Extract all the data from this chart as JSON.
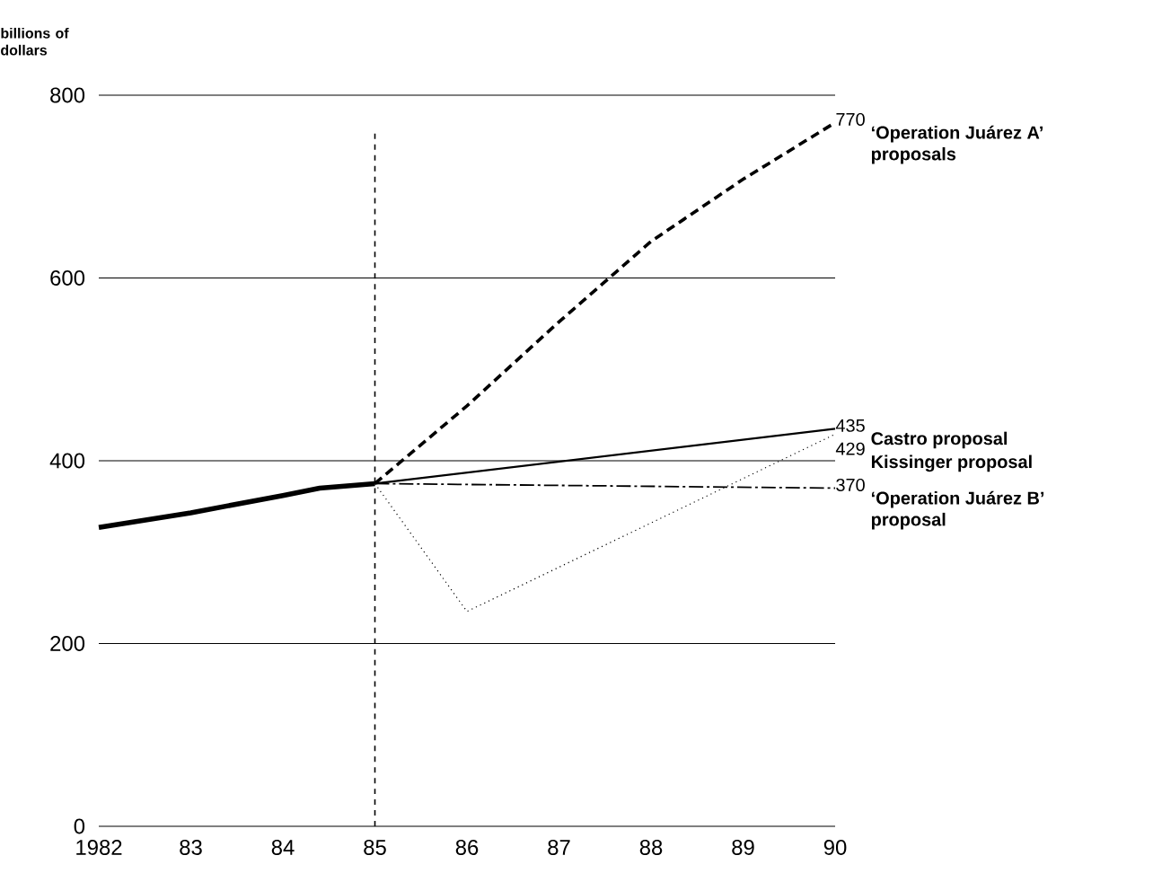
{
  "chart_data": {
    "type": "line",
    "ylabel": "billions of dollars",
    "xlim": [
      1982,
      1990
    ],
    "ylim": [
      0,
      800
    ],
    "xticks": [
      1982,
      {
        "value": 1983,
        "label": "83"
      },
      {
        "value": 1984,
        "label": "84"
      },
      {
        "value": 1985,
        "label": "85"
      },
      {
        "value": 1986,
        "label": "86"
      },
      {
        "value": 1987,
        "label": "87"
      },
      {
        "value": 1988,
        "label": "88"
      },
      {
        "value": 1989,
        "label": "89"
      },
      {
        "value": 1990,
        "label": "90"
      }
    ],
    "yticks": [
      0,
      200,
      400,
      600,
      800
    ],
    "grid": "y",
    "ref_lines": [
      {
        "axis": "x",
        "value": 1985,
        "line_style": "dashed"
      }
    ],
    "series": [
      {
        "color": "#000000",
        "line_style": "solid",
        "x": [
          1982,
          1983,
          1984,
          1984.4,
          1985
        ],
        "values": [
          327,
          343,
          362,
          370,
          375
        ]
      },
      {
        "name": "‘Operation Juárez A’ proposals",
        "color": "#000000",
        "line_style": "dashed",
        "x": [
          1985,
          1986,
          1987,
          1988,
          1989,
          1990
        ],
        "values": [
          375,
          460,
          552,
          640,
          708,
          770
        ],
        "value_labels": [
          null,
          null,
          null,
          null,
          null,
          "770"
        ]
      },
      {
        "name": "Castro proposal",
        "color": "#000000",
        "line_style": "solid",
        "x": [
          1985,
          1990
        ],
        "values": [
          375,
          435
        ],
        "value_labels": [
          null,
          "435"
        ]
      },
      {
        "name": "Kissinger proposal",
        "color": "#000000",
        "line_style": "dotted",
        "x": [
          1985,
          1986,
          1990
        ],
        "values": [
          375,
          235,
          429
        ],
        "value_labels": [
          null,
          null,
          "429"
        ]
      },
      {
        "name": "‘Operation Juárez B’ proposal",
        "color": "#000000",
        "line_style": "dashdot",
        "x": [
          1985,
          1990
        ],
        "values": [
          375,
          370
        ],
        "value_labels": [
          null,
          "370"
        ]
      }
    ]
  }
}
